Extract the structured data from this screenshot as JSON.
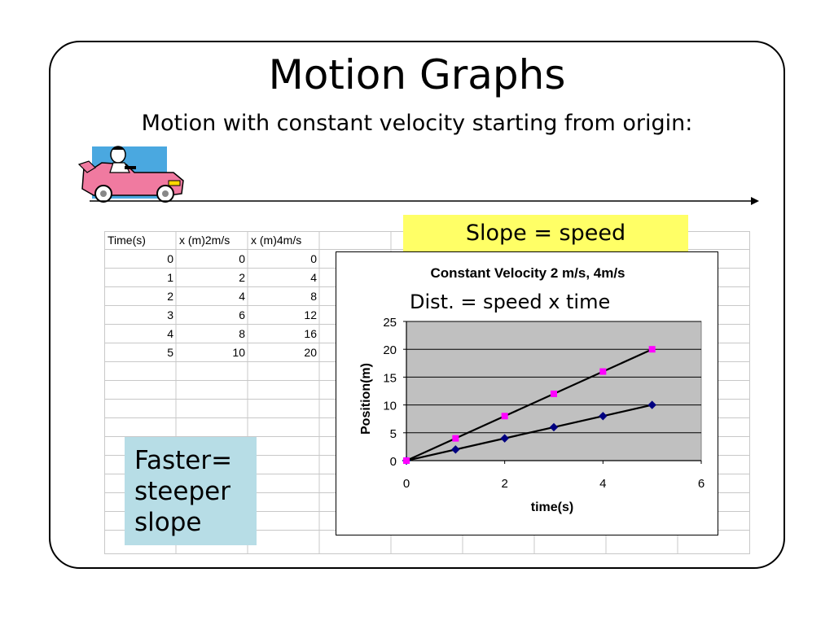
{
  "slide": {
    "title": "Motion Graphs",
    "subtitle": "Motion with constant velocity starting from origin:",
    "slope_callout": "Slope = speed",
    "faster_lines": [
      "Faster=",
      "steeper",
      "slope"
    ]
  },
  "table": {
    "headers": [
      "Time(s)",
      "x (m)2m/s",
      "x (m)4m/s"
    ],
    "rows": [
      [
        "0",
        "0",
        "0"
      ],
      [
        "1",
        "2",
        "4"
      ],
      [
        "2",
        "4",
        "8"
      ],
      [
        "3",
        "6",
        "12"
      ],
      [
        "4",
        "8",
        "16"
      ],
      [
        "5",
        "10",
        "20"
      ]
    ]
  },
  "chart_data": {
    "type": "scatter",
    "title": "Constant Velocity 2 m/s, 4m/s",
    "annotation": "Dist. = speed x time",
    "xlabel": "time(s)",
    "ylabel": "Position(m)",
    "xlim": [
      0,
      6
    ],
    "ylim": [
      0,
      25
    ],
    "xticks": [
      0,
      2,
      4,
      6
    ],
    "yticks": [
      0,
      5,
      10,
      15,
      20,
      25
    ],
    "grid": "horizontal",
    "plot_background": "#c0c0c0",
    "x": [
      0,
      1,
      2,
      3,
      4,
      5
    ],
    "series": [
      {
        "values": [
          0,
          2,
          4,
          6,
          8,
          10
        ],
        "color": "#000080",
        "marker": "diamond"
      },
      {
        "values": [
          0,
          4,
          8,
          12,
          16,
          20
        ],
        "color": "#ff00ff",
        "marker": "square"
      }
    ],
    "trendlines": [
      {
        "from": [
          0,
          0
        ],
        "to": [
          5,
          10
        ],
        "color": "#000000"
      },
      {
        "from": [
          0,
          0
        ],
        "to": [
          5,
          20
        ],
        "color": "#000000"
      }
    ]
  }
}
